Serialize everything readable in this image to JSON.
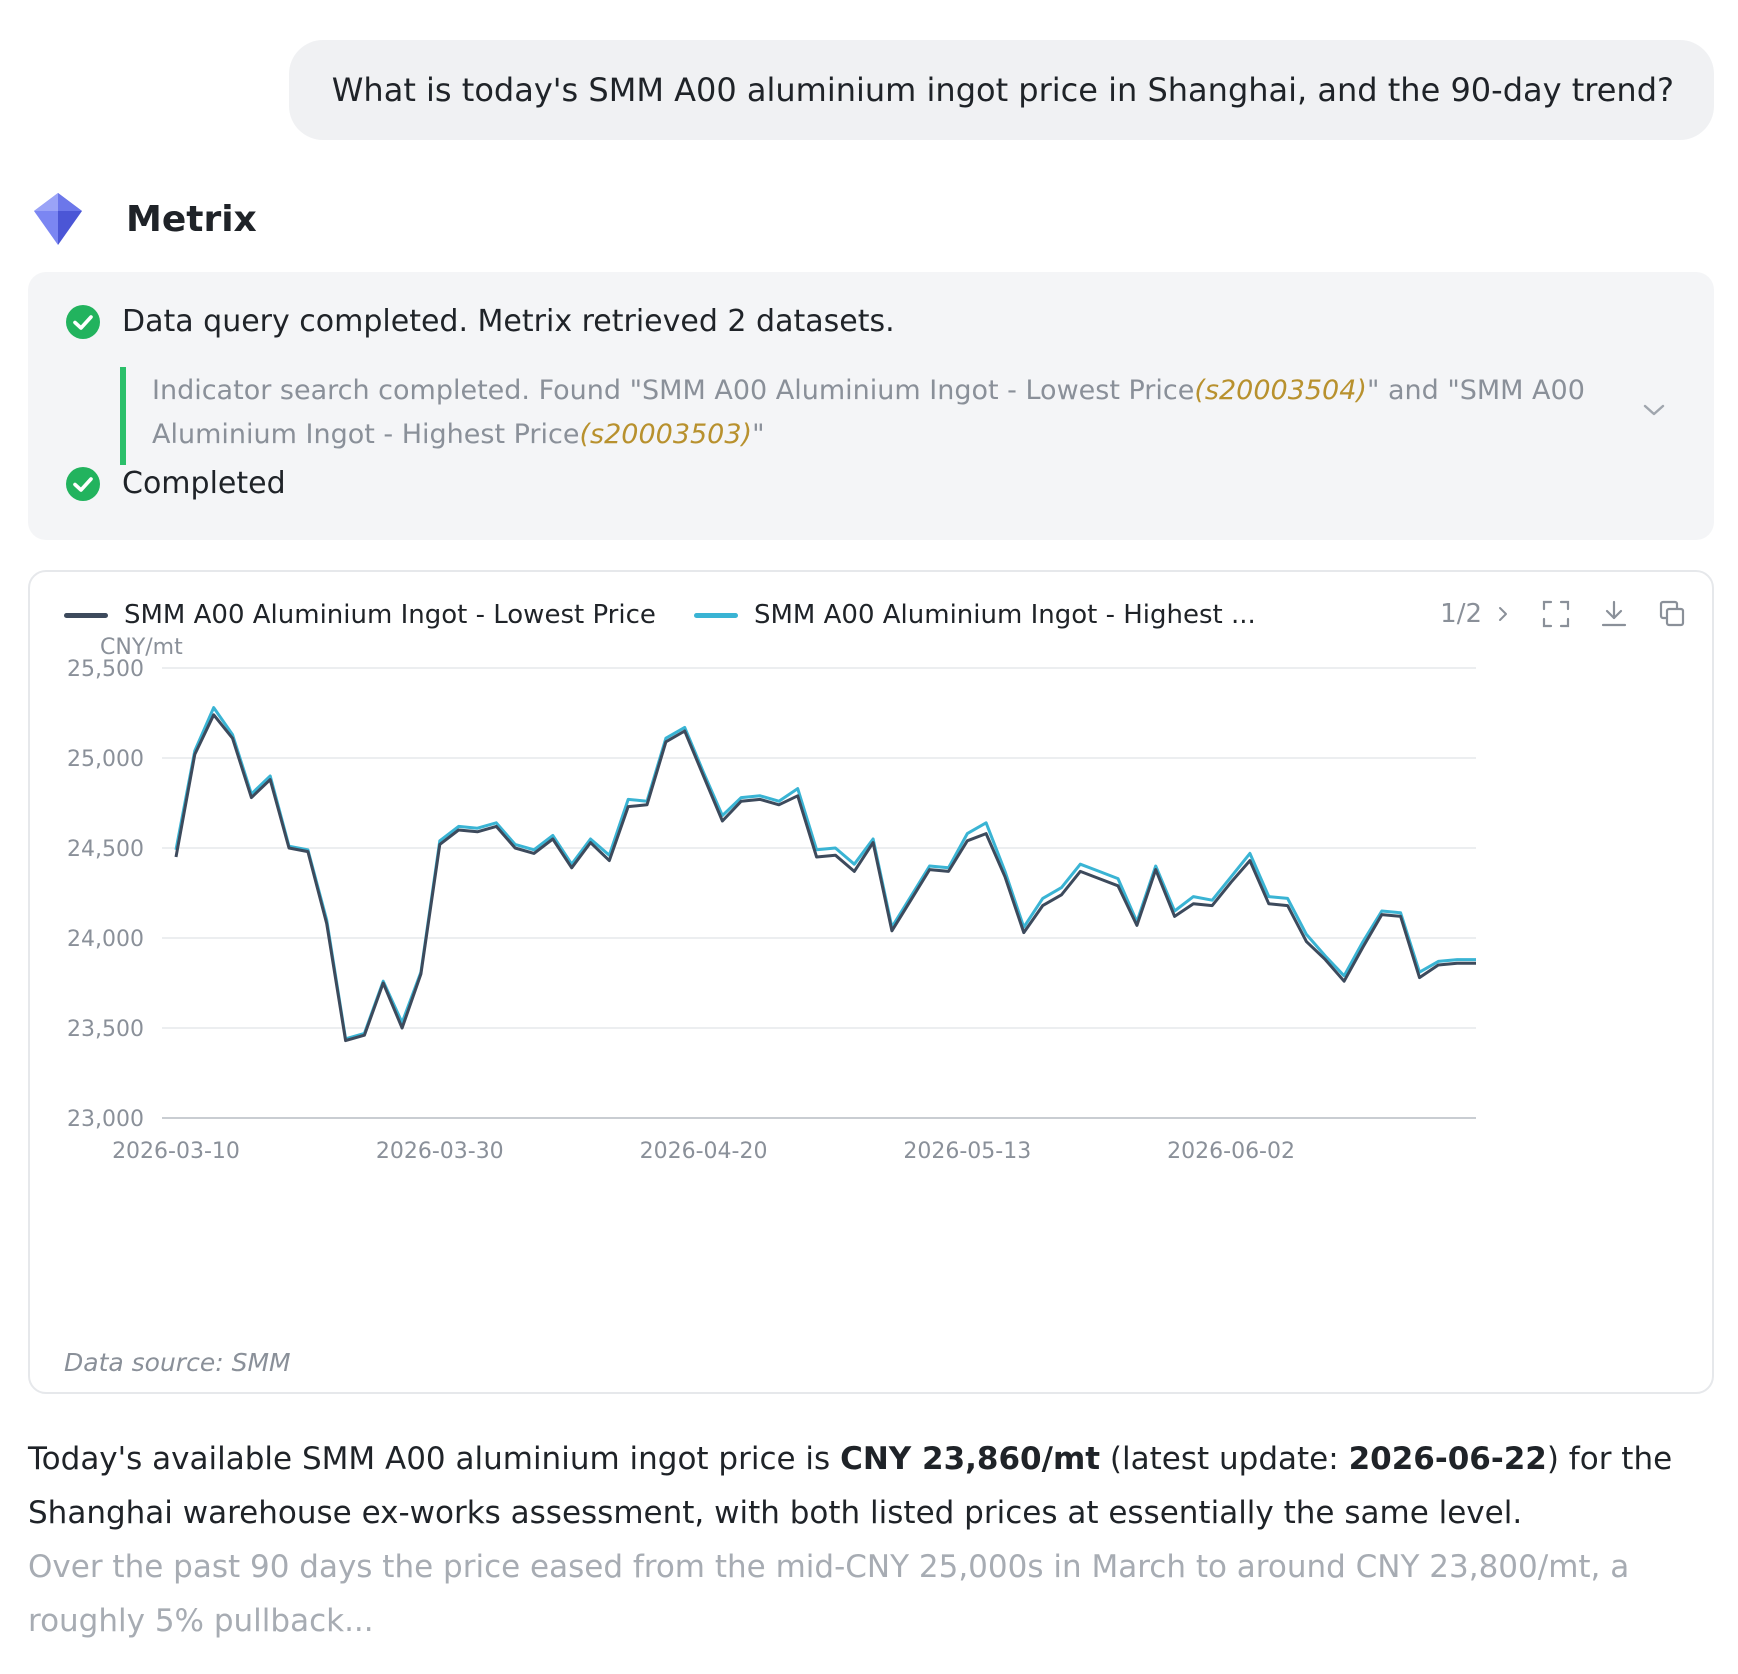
{
  "user_message": "What is today's SMM A00 aluminium ingot price in Shanghai, and the 90-day trend?",
  "assistant": {
    "name": "Metrix",
    "logo_icon": "diamond-logo-icon"
  },
  "status": {
    "query_status": "Data query completed. Metrix retrieved 2 datasets.",
    "detail_prefix": "Indicator search completed. Found \"SMM A00 Aluminium Ingot - Lowest Price",
    "detail_code1": "(s20003504)",
    "detail_middle": "\" and \"SMM A00 Aluminium Ingot - Highest Price",
    "detail_code2": "(s20003503)",
    "detail_suffix": "\"",
    "completed": "Completed",
    "success_color": "#22b35e"
  },
  "chart_toolbar": {
    "page_indicator": "1/2"
  },
  "chart_data": {
    "type": "line",
    "unit": "CNY/mt",
    "ylim": [
      23000,
      25500
    ],
    "y_ticks": [
      "25,500",
      "25,000",
      "24,500",
      "24,000",
      "23,500",
      "23,000"
    ],
    "x_ticks": [
      "2026-03-10",
      "2026-03-30",
      "2026-04-20",
      "2026-05-13",
      "2026-06-02"
    ],
    "x_tick_index": [
      0,
      14,
      28,
      42,
      56
    ],
    "grid": true,
    "legend": "top-left",
    "series": [
      {
        "name": "SMM A00 Aluminium Ingot - Lowest Price",
        "legend_label": "SMM A00 Aluminium Ingot - Lowest Price",
        "color": "#3d4a5c",
        "values": [
          24450,
          25020,
          25240,
          25110,
          24780,
          24880,
          24500,
          24480,
          24080,
          23430,
          23460,
          23750,
          23500,
          23800,
          24520,
          24600,
          24590,
          24620,
          24500,
          24470,
          24550,
          24390,
          24530,
          24430,
          24730,
          24740,
          25090,
          25150,
          24900,
          24650,
          24760,
          24770,
          24740,
          24790,
          24450,
          24460,
          24370,
          24530,
          24040,
          24210,
          24380,
          24370,
          24540,
          24580,
          24340,
          24030,
          24180,
          24240,
          24370,
          24330,
          24290,
          24070,
          24380,
          24120,
          24190,
          24180,
          24310,
          24430,
          24190,
          24180,
          23980,
          23880,
          23760,
          23950,
          24130,
          24120,
          23780,
          23850,
          23860,
          23860
        ]
      },
      {
        "name": "SMM A00 Aluminium Ingot - Highest Price",
        "legend_label": "SMM A00 Aluminium Ingot - Highest ...",
        "color": "#3ab4d4",
        "values": [
          24490,
          25040,
          25280,
          25130,
          24800,
          24900,
          24510,
          24490,
          24100,
          23440,
          23470,
          23760,
          23530,
          23810,
          24540,
          24620,
          24610,
          24640,
          24520,
          24490,
          24570,
          24410,
          24550,
          24460,
          24770,
          24760,
          25110,
          25170,
          24920,
          24680,
          24780,
          24790,
          24760,
          24830,
          24490,
          24500,
          24410,
          24550,
          24060,
          24230,
          24400,
          24390,
          24580,
          24640,
          24370,
          24060,
          24220,
          24280,
          24410,
          24370,
          24330,
          24090,
          24400,
          24150,
          24230,
          24210,
          24340,
          24470,
          24230,
          24220,
          24020,
          23900,
          23790,
          23980,
          24150,
          24140,
          23810,
          23870,
          23880,
          23880
        ]
      }
    ]
  },
  "data_source": "Data source: SMM",
  "answer": {
    "p1_a": "Today's available SMM A00 aluminium ingot price is ",
    "p1_price": "CNY 23,860/mt",
    "p1_b": " (latest update: ",
    "p1_date": "2026-06-22",
    "p1_c": ") for the Shanghai warehouse ex-works assessment, with both listed prices at essentially the same level.",
    "p2": "Over the past 90 days the price eased from the mid-CNY 25,000s in March to around CNY 23,800/mt, a roughly 5% pullback..."
  }
}
